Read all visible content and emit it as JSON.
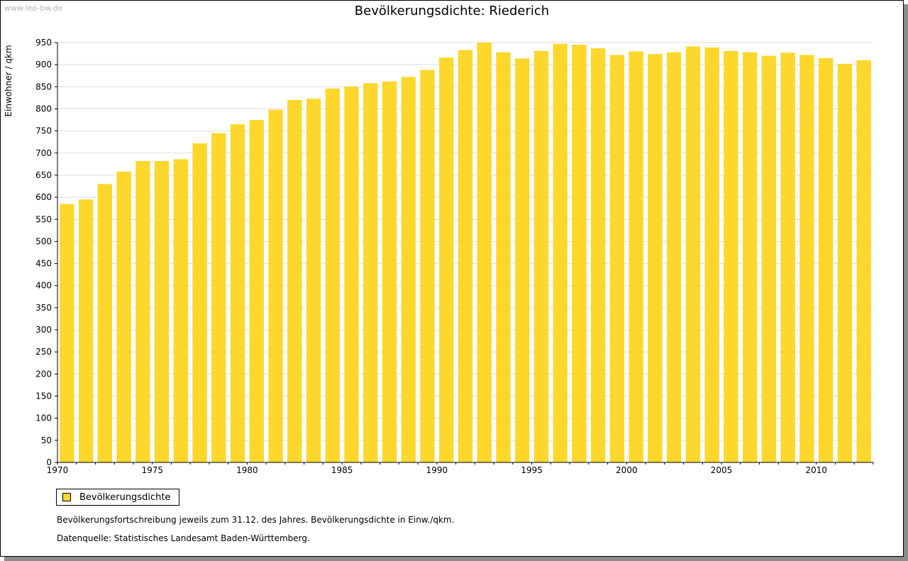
{
  "watermark": "www.leo-bw.de",
  "colors": {
    "bar": "#fdd72b",
    "grid": "#dcdcdc",
    "axis": "#000000"
  },
  "chart_data": {
    "type": "bar",
    "title": "Bevölkerungsdichte: Riederich",
    "ylabel": "Einwohner / qkm",
    "xlabel": "",
    "ylim": [
      0,
      950
    ],
    "yticks": [
      0,
      50,
      100,
      150,
      200,
      250,
      300,
      350,
      400,
      450,
      500,
      550,
      600,
      650,
      700,
      750,
      800,
      850,
      900,
      950
    ],
    "xtick_labels": [
      "1970",
      "1975",
      "1980",
      "1985",
      "1990",
      "1995",
      "2000",
      "2005",
      "2010"
    ],
    "grid": true,
    "legend_position": "bottom-left",
    "categories": [
      1970,
      1971,
      1972,
      1973,
      1974,
      1975,
      1976,
      1977,
      1978,
      1979,
      1980,
      1981,
      1982,
      1983,
      1984,
      1985,
      1986,
      1987,
      1988,
      1989,
      1990,
      1991,
      1992,
      1993,
      1994,
      1995,
      1996,
      1997,
      1998,
      1999,
      2000,
      2001,
      2002,
      2003,
      2004,
      2005,
      2006,
      2007,
      2008,
      2009,
      2010,
      2011,
      2012
    ],
    "series": [
      {
        "name": "Bevölkerungsdichte",
        "values": [
          585,
          595,
          630,
          658,
          682,
          682,
          686,
          722,
          745,
          765,
          775,
          798,
          820,
          823,
          846,
          850,
          858,
          862,
          872,
          888,
          916,
          933,
          950,
          928,
          914,
          931,
          947,
          945,
          937,
          922,
          930,
          924,
          928,
          941,
          939,
          931,
          928,
          920,
          927,
          922,
          915,
          902,
          910
        ]
      }
    ]
  },
  "footnotes": [
    "Bevölkerungsfortschreibung jeweils zum 31.12. des Jahres. Bevölkerungsdichte in Einw./qkm.",
    "Datenquelle: Statistisches Landesamt Baden-Württemberg."
  ]
}
